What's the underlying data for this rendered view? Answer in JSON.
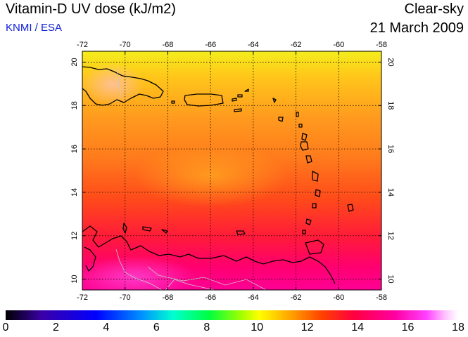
{
  "header": {
    "title": "Vitamin-D UV dose (kJ/m2)",
    "source": "KNMI / ESA",
    "sky_condition": "Clear-sky",
    "date": "21 March 2009"
  },
  "map": {
    "lon_range": [
      -72,
      -58
    ],
    "lat_range": [
      9.5,
      20.5
    ],
    "lon_ticks": [
      -72,
      -70,
      -68,
      -66,
      -64,
      -62,
      -60,
      -58
    ],
    "lat_ticks": [
      10,
      12,
      14,
      16,
      18,
      20
    ],
    "lon_tick_labels": [
      "-72",
      "-70",
      "-68",
      "-66",
      "-64",
      "-62",
      "-60",
      "-58"
    ],
    "lat_tick_labels": [
      "10",
      "12",
      "14",
      "16",
      "18",
      "20"
    ],
    "grid": "dotted"
  },
  "colorbar": {
    "min": 0,
    "max": 18,
    "tick_labels": [
      "0",
      "2",
      "4",
      "6",
      "8",
      "10",
      "12",
      "14",
      "16",
      "18"
    ],
    "colors": [
      "#000000",
      "#3a00a8",
      "#0000ff",
      "#0090ff",
      "#00ffd0",
      "#00ff40",
      "#a0ff00",
      "#ffff00",
      "#ffb000",
      "#ff4000",
      "#ff0040",
      "#ff00a0",
      "#ff40ff",
      "#ffc0ff",
      "#ffffff"
    ]
  }
}
